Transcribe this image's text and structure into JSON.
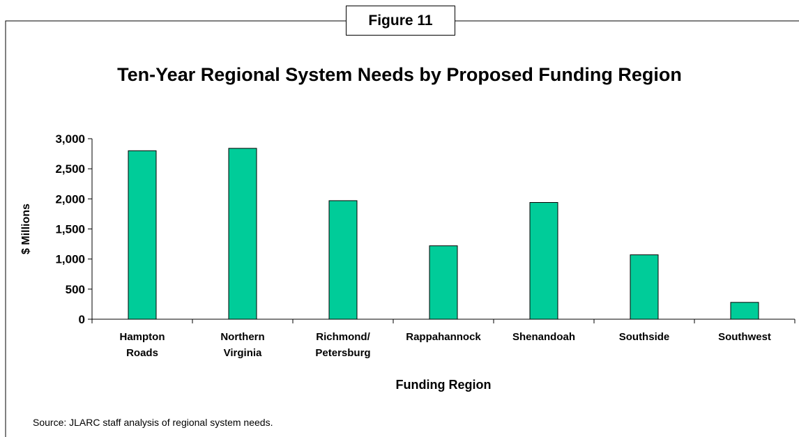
{
  "figure_label": "Figure 11",
  "source_note": "Source:  JLARC staff analysis of regional system needs.",
  "chart_data": {
    "type": "bar",
    "title": "Ten-Year Regional System Needs by Proposed Funding Region",
    "xlabel": "Funding Region",
    "ylabel": "$ Millions",
    "ylim": [
      0,
      3000
    ],
    "yticks": [
      "0",
      "500",
      "1,000",
      "1,500",
      "2,000",
      "2,500",
      "3,000"
    ],
    "categories": [
      [
        "Hampton",
        "Roads"
      ],
      [
        "Northern",
        "Virginia"
      ],
      [
        "Richmond/",
        "Petersburg"
      ],
      [
        "Rappahannock"
      ],
      [
        "Shenandoah"
      ],
      [
        "Southside"
      ],
      [
        "Southwest"
      ]
    ],
    "values": [
      2800,
      2840,
      1970,
      1220,
      1940,
      1070,
      280
    ],
    "bar_color": "#00cc99",
    "grid": false
  }
}
